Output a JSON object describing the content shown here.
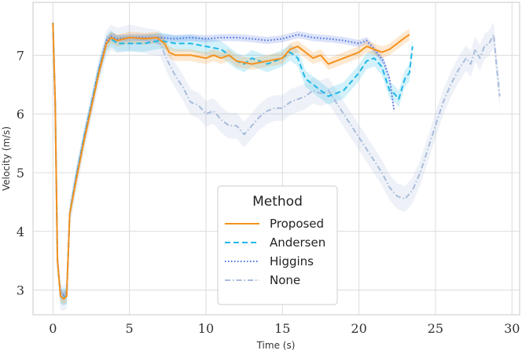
{
  "chart_data": {
    "type": "line",
    "title": "",
    "xlabel": "Time (s)",
    "ylabel": "Velocity (m/s)",
    "xlim": [
      -1.3,
      30.5
    ],
    "ylim": [
      2.58,
      7.9
    ],
    "xticks": [
      0,
      5,
      10,
      15,
      20,
      25,
      30
    ],
    "xtick_labels": [
      "0",
      "5",
      "10",
      "15",
      "20",
      "25",
      "30"
    ],
    "yticks": [
      3,
      4,
      5,
      6,
      7
    ],
    "ytick_labels": [
      "3",
      "4",
      "5",
      "6",
      "7"
    ],
    "grid": true,
    "legend": {
      "title": "Method",
      "placement": "lower-center",
      "entries": [
        "Proposed",
        "Andersen",
        "Higgins",
        "None"
      ]
    },
    "series": [
      {
        "name": "Proposed",
        "color": "#F5921E",
        "dash": "solid",
        "x": [
          0,
          0.15,
          0.3,
          0.5,
          0.7,
          0.9,
          1.1,
          1.5,
          2,
          2.5,
          3,
          3.5,
          3.8,
          4.2,
          5,
          6,
          6.8,
          7.3,
          7.6,
          8,
          9,
          10,
          10.5,
          11,
          11.5,
          12,
          13,
          14,
          15,
          15.5,
          16,
          16.5,
          17,
          17.5,
          18,
          18.5,
          19,
          19.5,
          20,
          20.5,
          21,
          21.5,
          22,
          22.5,
          23,
          23.3
        ],
        "y": [
          7.55,
          6.2,
          3.5,
          2.9,
          2.85,
          2.9,
          4.3,
          4.85,
          5.5,
          6.1,
          6.7,
          7.2,
          7.3,
          7.25,
          7.3,
          7.28,
          7.3,
          7.2,
          7.05,
          7.0,
          7.0,
          6.95,
          7.0,
          6.95,
          7.0,
          6.9,
          6.85,
          6.9,
          6.95,
          7.1,
          7.15,
          7.05,
          6.95,
          7.0,
          6.85,
          6.9,
          6.95,
          7.0,
          7.05,
          7.15,
          7.1,
          7.05,
          7.1,
          7.2,
          7.3,
          7.35
        ],
        "band": 0.1
      },
      {
        "name": "Andersen",
        "color": "#1FB8E8",
        "dash": "dashed",
        "x": [
          0,
          0.15,
          0.3,
          0.5,
          0.7,
          0.9,
          1.1,
          1.5,
          2,
          2.5,
          3,
          3.5,
          3.8,
          4.2,
          5,
          6,
          7,
          8,
          9,
          10,
          11,
          11.5,
          12,
          12.5,
          13,
          14,
          15,
          15.5,
          16,
          16.5,
          17,
          17.5,
          18,
          18.5,
          19,
          19.5,
          20,
          20.5,
          21,
          21.5,
          22,
          22.3,
          22.6,
          23,
          23.3,
          23.5
        ],
        "y": [
          7.55,
          6.2,
          3.5,
          2.9,
          2.88,
          2.9,
          4.3,
          4.9,
          5.55,
          6.15,
          6.75,
          7.2,
          7.28,
          7.2,
          7.2,
          7.2,
          7.25,
          7.2,
          7.2,
          7.15,
          7.1,
          7.0,
          6.9,
          6.85,
          6.95,
          6.85,
          6.95,
          7.05,
          6.95,
          6.6,
          6.5,
          6.4,
          6.3,
          6.35,
          6.4,
          6.55,
          6.7,
          6.9,
          6.95,
          6.8,
          6.4,
          6.35,
          6.25,
          6.6,
          6.7,
          7.15
        ],
        "band": 0.14
      },
      {
        "name": "Higgins",
        "color": "#4A6FE0",
        "dash": "dotted",
        "x": [
          0,
          0.15,
          0.3,
          0.5,
          0.7,
          0.9,
          1.1,
          1.5,
          2,
          2.5,
          3,
          3.5,
          3.8,
          4.2,
          5,
          6,
          7,
          8,
          9,
          10,
          11,
          12,
          13,
          14,
          15,
          16,
          17,
          18,
          19,
          20,
          20.5,
          21,
          21.3,
          21.6,
          22,
          22.3
        ],
        "y": [
          7.55,
          6.2,
          3.5,
          2.95,
          2.92,
          2.95,
          4.3,
          4.9,
          5.55,
          6.15,
          6.75,
          7.25,
          7.32,
          7.28,
          7.3,
          7.3,
          7.3,
          7.28,
          7.3,
          7.28,
          7.3,
          7.3,
          7.28,
          7.25,
          7.28,
          7.35,
          7.3,
          7.28,
          7.25,
          7.2,
          7.25,
          7.1,
          7.0,
          6.9,
          6.6,
          6.05
        ],
        "band": 0.06
      },
      {
        "name": "None",
        "color": "#A9BCDC",
        "dash": "dashdot",
        "x": [
          0,
          0.15,
          0.3,
          0.5,
          0.7,
          0.9,
          1.1,
          1.5,
          2,
          2.5,
          3,
          3.5,
          3.8,
          4.2,
          5,
          6,
          7,
          7.5,
          8,
          8.5,
          9,
          9.5,
          10,
          10.5,
          11,
          11.5,
          12,
          12.5,
          13,
          13.5,
          14,
          14.5,
          15,
          15.5,
          16,
          16.5,
          17,
          17.5,
          18,
          18.5,
          19,
          19.5,
          20,
          20.5,
          21,
          21.5,
          22,
          22.5,
          23,
          23.5,
          24,
          24.5,
          25,
          25.5,
          26,
          26.5,
          27,
          27.3,
          27.6,
          27.9,
          28.2,
          28.5,
          28.8,
          29,
          29.2
        ],
        "y": [
          7.55,
          6.2,
          3.5,
          2.88,
          2.86,
          2.9,
          4.3,
          4.85,
          5.5,
          6.1,
          6.7,
          7.2,
          7.3,
          7.25,
          7.3,
          7.25,
          7.2,
          6.9,
          6.65,
          6.45,
          6.2,
          6.15,
          6.0,
          6.05,
          5.9,
          5.8,
          5.8,
          5.65,
          5.8,
          5.95,
          6.05,
          6.1,
          6.1,
          6.2,
          6.25,
          6.3,
          6.4,
          6.35,
          6.4,
          6.2,
          6.0,
          5.8,
          5.6,
          5.4,
          5.2,
          5.0,
          4.75,
          4.6,
          4.55,
          4.7,
          5.0,
          5.4,
          5.8,
          6.2,
          6.5,
          6.75,
          6.95,
          6.85,
          7.1,
          6.95,
          7.15,
          7.2,
          7.35,
          6.8,
          6.3
        ],
        "band": 0.22
      }
    ]
  }
}
